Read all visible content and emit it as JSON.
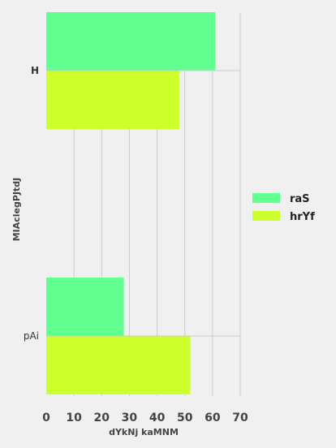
{
  "chart_data": {
    "type": "bar",
    "orientation": "horizontal",
    "categories": [
      "H",
      "pAi"
    ],
    "series": [
      {
        "name": "raS",
        "values": [
          61,
          28
        ],
        "color": "#61ff90"
      },
      {
        "name": "hrYf",
        "values": [
          48,
          52
        ],
        "color": "#ccff2b"
      }
    ],
    "xlabel": "dYkNj kaMNM",
    "ylabel": "MIAclegPJtdJ",
    "xlim": [
      0,
      70
    ],
    "xticks": [
      0,
      10,
      20,
      30,
      40,
      50,
      60,
      70
    ],
    "grid": true,
    "legend_position": "right"
  },
  "colors": {
    "background": "#f0f0f0",
    "grid": "#cbcbcb"
  }
}
